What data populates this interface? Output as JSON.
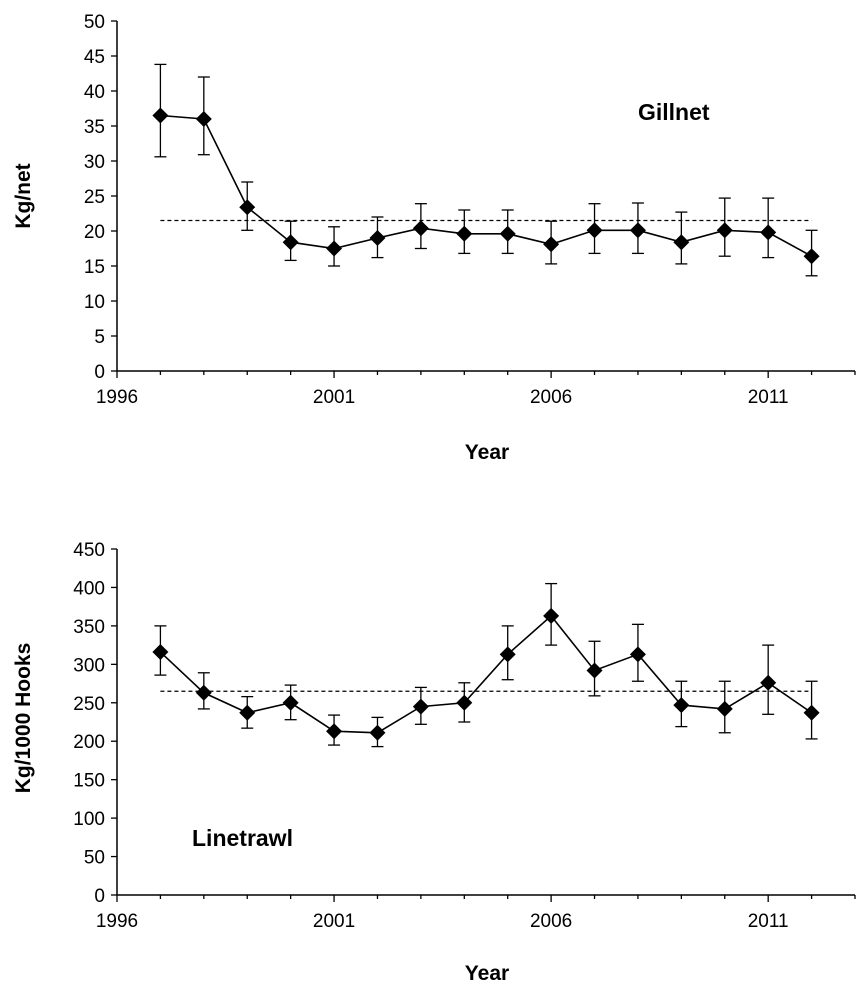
{
  "chart_data": [
    {
      "type": "line",
      "panel_label": "Gillnet",
      "xlabel": "Year",
      "ylabel": "Kg/net",
      "xlim": [
        1996,
        2013
      ],
      "ylim": [
        0,
        50
      ],
      "xticks": [
        1996,
        2001,
        2006,
        2011
      ],
      "yticks": [
        0,
        5,
        10,
        15,
        20,
        25,
        30,
        35,
        40,
        45,
        50
      ],
      "mean_line": 21.5,
      "series": [
        {
          "x": [
            1997,
            1998,
            1999,
            2000,
            2001,
            2002,
            2003,
            2004,
            2005,
            2006,
            2007,
            2008,
            2009,
            2010,
            2011,
            2012
          ],
          "values": [
            36.5,
            36.0,
            23.4,
            18.4,
            17.5,
            19.0,
            20.4,
            19.6,
            19.6,
            18.1,
            20.1,
            20.1,
            18.4,
            20.1,
            19.8,
            16.4
          ],
          "upper": [
            43.8,
            42.0,
            27.0,
            21.4,
            20.6,
            22.0,
            23.9,
            23.0,
            23.0,
            21.4,
            23.9,
            24.0,
            22.7,
            24.7,
            24.7,
            20.1
          ],
          "lower": [
            30.6,
            30.9,
            20.1,
            15.8,
            15.0,
            16.2,
            17.5,
            16.8,
            16.8,
            15.3,
            16.8,
            16.8,
            15.3,
            16.4,
            16.2,
            13.6
          ]
        }
      ],
      "grid": false,
      "legend": "none"
    },
    {
      "type": "line",
      "panel_label": "Linetrawl",
      "xlabel": "Year",
      "ylabel": "Kg/1000 Hooks",
      "xlim": [
        1996,
        2013
      ],
      "ylim": [
        0,
        450
      ],
      "xticks": [
        1996,
        2001,
        2006,
        2011
      ],
      "yticks": [
        0,
        50,
        100,
        150,
        200,
        250,
        300,
        350,
        400,
        450
      ],
      "mean_line": 265,
      "series": [
        {
          "x": [
            1997,
            1998,
            1999,
            2000,
            2001,
            2002,
            2003,
            2004,
            2005,
            2006,
            2007,
            2008,
            2009,
            2010,
            2011,
            2012
          ],
          "values": [
            316,
            263,
            237,
            250,
            213,
            211,
            245,
            250,
            313,
            363,
            292,
            313,
            247,
            242,
            276,
            237
          ],
          "upper": [
            350,
            289,
            258,
            273,
            234,
            231,
            270,
            276,
            350,
            405,
            330,
            352,
            278,
            278,
            325,
            278
          ],
          "lower": [
            286,
            242,
            217,
            228,
            195,
            193,
            222,
            225,
            280,
            325,
            259,
            278,
            219,
            211,
            235,
            203
          ]
        }
      ],
      "grid": false,
      "legend": "none"
    }
  ]
}
